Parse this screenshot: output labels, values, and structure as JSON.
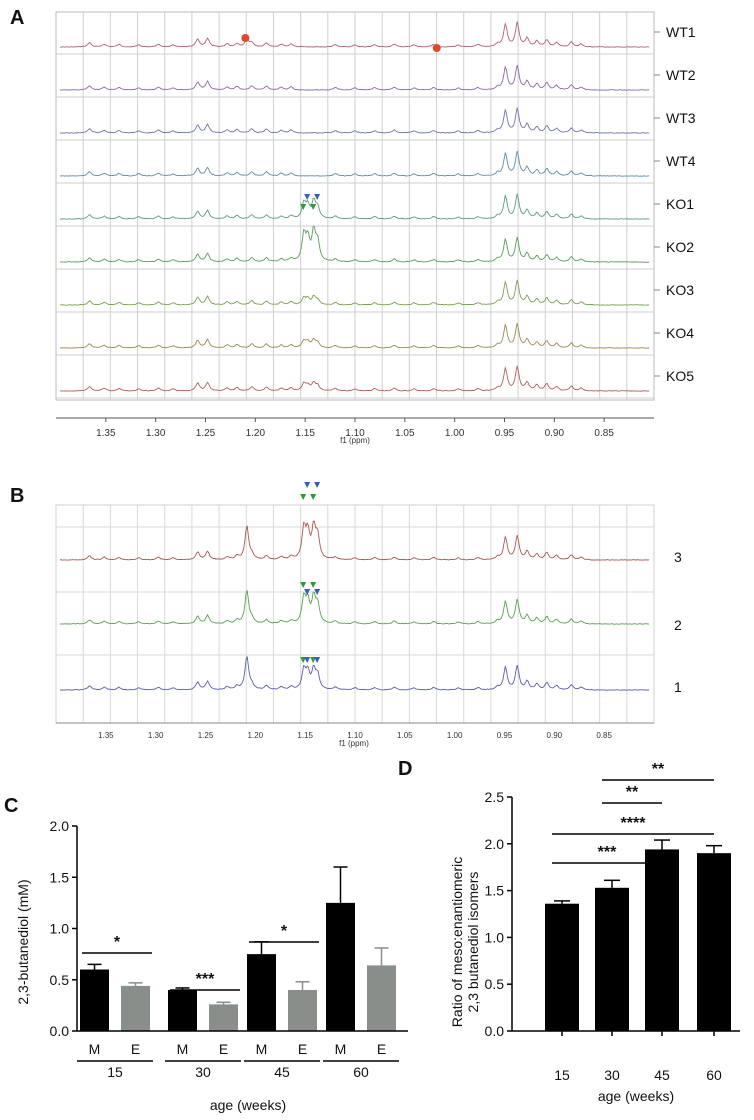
{
  "panels": {
    "A": {
      "letter": "A",
      "xaxis_label": "f1 (ppm)",
      "ticks": [
        "1.35",
        "1.30",
        "1.25",
        "1.20",
        "1.15",
        "1.10",
        "1.05",
        "1.00",
        "0.95",
        "0.90",
        "0.85"
      ],
      "traces": [
        {
          "label": "WT1",
          "color": "#b0607a"
        },
        {
          "label": "WT2",
          "color": "#8c6aa0"
        },
        {
          "label": "WT3",
          "color": "#6f74a8"
        },
        {
          "label": "WT4",
          "color": "#5f8ea6"
        },
        {
          "label": "KO1",
          "color": "#5c9a86"
        },
        {
          "label": "KO2",
          "color": "#5a9c5a"
        },
        {
          "label": "KO3",
          "color": "#78a050"
        },
        {
          "label": "KO4",
          "color": "#9a8a52"
        },
        {
          "label": "KO5",
          "color": "#b0605a"
        }
      ],
      "marker_colors": {
        "meso": "#e04a2a",
        "blue": "#3a5cc0",
        "green": "#2e9a3a"
      }
    },
    "B": {
      "letter": "B",
      "xaxis_label": "f1 (ppm)",
      "ticks": [
        "1.35",
        "1.30",
        "1.25",
        "1.20",
        "1.15",
        "1.10",
        "1.05",
        "1.00",
        "0.95",
        "0.90",
        "0.85"
      ],
      "traces": [
        {
          "label": "3",
          "color": "#a8584e"
        },
        {
          "label": "2",
          "color": "#5aa050"
        },
        {
          "label": "1",
          "color": "#5a5ea8"
        }
      ]
    },
    "C": {
      "letter": "C"
    },
    "D": {
      "letter": "D"
    }
  },
  "chart_data": [
    {
      "type": "bar",
      "panel": "C",
      "ylabel": "2,3-butanediol (mM)",
      "xlabel": "age (weeks)",
      "ylim": [
        0,
        2.0
      ],
      "yticks": [
        "0.0",
        "0.5",
        "1.0",
        "1.5",
        "2.0"
      ],
      "groups": [
        "15",
        "30",
        "45",
        "60"
      ],
      "bar_labels": [
        "M",
        "E"
      ],
      "series": [
        {
          "name": "M",
          "color": "#000000",
          "values": [
            0.6,
            0.4,
            0.75,
            1.25
          ],
          "errors": [
            0.05,
            0.02,
            0.12,
            0.35
          ]
        },
        {
          "name": "E",
          "color": "#8a8e8a",
          "values": [
            0.44,
            0.26,
            0.4,
            0.64
          ],
          "errors": [
            0.03,
            0.02,
            0.08,
            0.17
          ]
        }
      ],
      "significance": [
        {
          "group": 0,
          "label": "*"
        },
        {
          "group": 1,
          "label": "***"
        },
        {
          "group": 2,
          "label": "*"
        }
      ]
    },
    {
      "type": "bar",
      "panel": "D",
      "ylabel_line1": "Ratio of meso:enantiomeric",
      "ylabel_line2": "2,3 butanediol isomers",
      "xlabel": "age (weeks)",
      "ylim": [
        0,
        2.5
      ],
      "yticks": [
        "0.0",
        "0.5",
        "1.0",
        "1.5",
        "2.0",
        "2.5"
      ],
      "categories": [
        "15",
        "30",
        "45",
        "60"
      ],
      "values": [
        1.36,
        1.53,
        1.94,
        1.9
      ],
      "errors": [
        0.03,
        0.08,
        0.1,
        0.08
      ],
      "color": "#000000",
      "significance": [
        {
          "from": 1,
          "to": 3,
          "label": "**"
        },
        {
          "from": 1,
          "to": 2,
          "label": "**"
        },
        {
          "from": 0,
          "to": 3,
          "label": "****"
        },
        {
          "from": 0,
          "to": 2,
          "label": "***"
        }
      ]
    }
  ]
}
